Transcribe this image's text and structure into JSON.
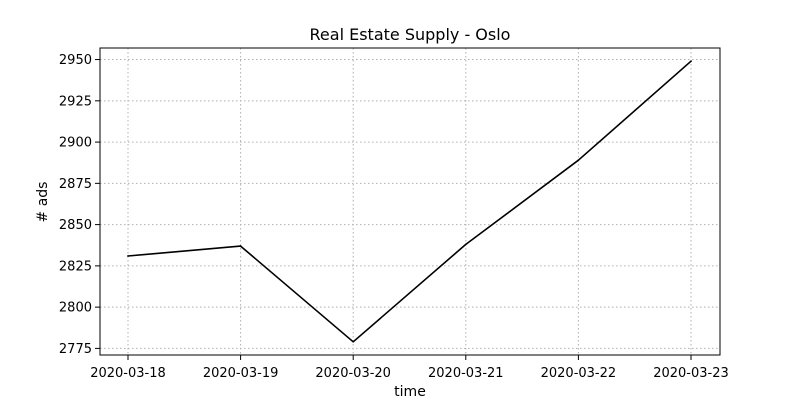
{
  "chart_data": {
    "type": "line",
    "title": "Real Estate Supply - Oslo",
    "xlabel": "time",
    "ylabel": "# ads",
    "x": [
      "2020-03-18",
      "2020-03-19",
      "2020-03-20",
      "2020-03-21",
      "2020-03-22",
      "2020-03-23"
    ],
    "series": [
      {
        "values": [
          2831,
          2837,
          2779,
          2838,
          2889,
          2949
        ],
        "color": "#000000"
      }
    ],
    "yticks": [
      2775,
      2800,
      2825,
      2850,
      2875,
      2900,
      2925,
      2950
    ],
    "ylim": [
      2771,
      2957
    ],
    "grid": true,
    "grid_style": "dotted",
    "legend": "none"
  }
}
